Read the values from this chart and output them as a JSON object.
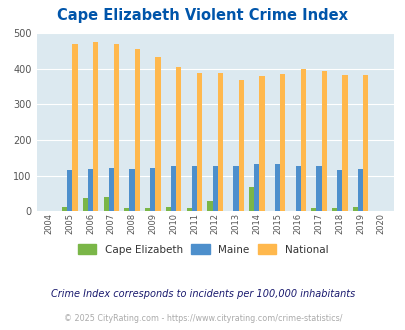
{
  "title": "Cape Elizabeth Violent Crime Index",
  "years": [
    2004,
    2005,
    2006,
    2007,
    2008,
    2009,
    2010,
    2011,
    2012,
    2013,
    2014,
    2015,
    2016,
    2017,
    2018,
    2019,
    2020
  ],
  "cape_elizabeth": [
    0,
    13,
    38,
    40,
    8,
    8,
    11,
    9,
    28,
    0,
    68,
    0,
    0,
    10,
    10,
    11,
    0
  ],
  "maine": [
    0,
    115,
    119,
    121,
    118,
    121,
    126,
    126,
    126,
    126,
    133,
    132,
    126,
    126,
    115,
    119,
    0
  ],
  "national": [
    0,
    469,
    474,
    468,
    455,
    432,
    405,
    388,
    387,
    368,
    379,
    384,
    399,
    394,
    382,
    381,
    0
  ],
  "cape_color": "#7ab648",
  "maine_color": "#4d8fcc",
  "national_color": "#ffb84d",
  "bg_color": "#dce9f0",
  "title_color": "#0055aa",
  "ylim": [
    0,
    500
  ],
  "yticks": [
    0,
    100,
    200,
    300,
    400,
    500
  ],
  "legend_labels": [
    "Cape Elizabeth",
    "Maine",
    "National"
  ],
  "footnote1": "Crime Index corresponds to incidents per 100,000 inhabitants",
  "footnote2": "© 2025 CityRating.com - https://www.cityrating.com/crime-statistics/"
}
